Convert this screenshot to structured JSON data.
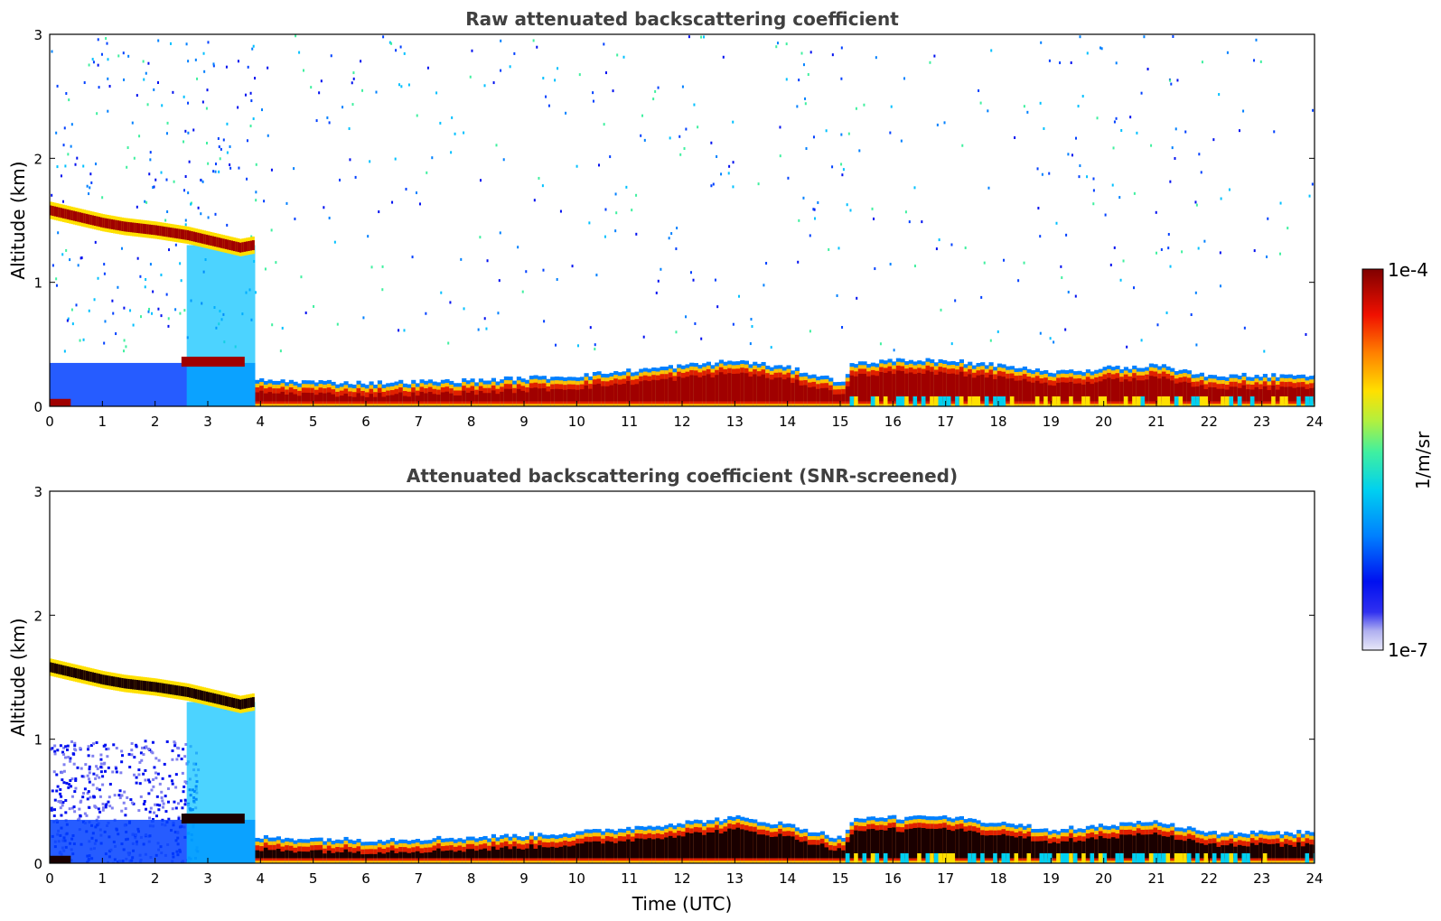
{
  "chart_data": [
    {
      "type": "heatmap",
      "title": "Raw attenuated backscattering coefficient",
      "xlabel": "",
      "ylabel": "Altitude (km)",
      "xlim": [
        0,
        24
      ],
      "ylim": [
        0,
        3
      ],
      "xticks": [
        "0",
        "1",
        "2",
        "3",
        "4",
        "5",
        "6",
        "7",
        "8",
        "9",
        "10",
        "11",
        "12",
        "13",
        "14",
        "15",
        "16",
        "17",
        "18",
        "19",
        "20",
        "21",
        "22",
        "23",
        "24"
      ],
      "yticks": [
        "0",
        "1",
        "2",
        "3"
      ],
      "grid": false,
      "features": {
        "cloud_layer": {
          "times": [
            0,
            1,
            1.4,
            2,
            2.6,
            3.2,
            3.6,
            3.85
          ],
          "altitudes": [
            1.58,
            1.48,
            1.45,
            1.42,
            1.38,
            1.32,
            1.28,
            1.3
          ]
        },
        "boundary_layer_top": {
          "times": [
            4,
            6,
            8,
            9,
            10,
            11,
            12,
            13,
            14,
            15,
            15.2,
            16,
            17,
            18,
            19,
            20,
            21,
            22,
            23,
            24
          ],
          "altitudes": [
            0.18,
            0.16,
            0.18,
            0.2,
            0.22,
            0.26,
            0.3,
            0.34,
            0.28,
            0.17,
            0.32,
            0.34,
            0.34,
            0.3,
            0.24,
            0.28,
            0.3,
            0.22,
            0.22,
            0.22
          ]
        }
      }
    },
    {
      "type": "heatmap",
      "title": "Attenuated backscattering coefficient (SNR-screened)",
      "xlabel": "Time (UTC)",
      "ylabel": "Altitude (km)",
      "xlim": [
        0,
        24
      ],
      "ylim": [
        0,
        3
      ],
      "xticks": [
        "0",
        "1",
        "2",
        "3",
        "4",
        "5",
        "6",
        "7",
        "8",
        "9",
        "10",
        "11",
        "12",
        "13",
        "14",
        "15",
        "16",
        "17",
        "18",
        "19",
        "20",
        "21",
        "22",
        "23",
        "24"
      ],
      "yticks": [
        "0",
        "1",
        "2",
        "3"
      ],
      "grid": false,
      "features": {
        "cloud_layer": {
          "times": [
            0,
            1,
            1.4,
            2,
            2.6,
            3.2,
            3.6,
            3.85
          ],
          "altitudes": [
            1.58,
            1.48,
            1.45,
            1.42,
            1.38,
            1.32,
            1.28,
            1.3
          ]
        },
        "boundary_layer_top": {
          "times": [
            4,
            6,
            8,
            9,
            10,
            11,
            12,
            13,
            14,
            15,
            15.2,
            16,
            17,
            18,
            19,
            20,
            21,
            22,
            23,
            24
          ],
          "altitudes": [
            0.18,
            0.16,
            0.18,
            0.2,
            0.22,
            0.26,
            0.3,
            0.34,
            0.28,
            0.17,
            0.32,
            0.34,
            0.34,
            0.3,
            0.24,
            0.28,
            0.3,
            0.22,
            0.22,
            0.22
          ]
        }
      }
    }
  ],
  "colorbar": {
    "max_label": "1e-4",
    "min_label": "1e-7",
    "unit_label": "1/m/sr",
    "scale": "log",
    "colors": [
      "#e8e8f8",
      "#b8b8f0",
      "#8080f0",
      "#0000f0",
      "#0040ff",
      "#0080ff",
      "#00c0ff",
      "#00e0e0",
      "#40f0a0",
      "#a0f060",
      "#e0f020",
      "#ffe000",
      "#ffa000",
      "#ff5000",
      "#e00000",
      "#900000"
    ]
  }
}
